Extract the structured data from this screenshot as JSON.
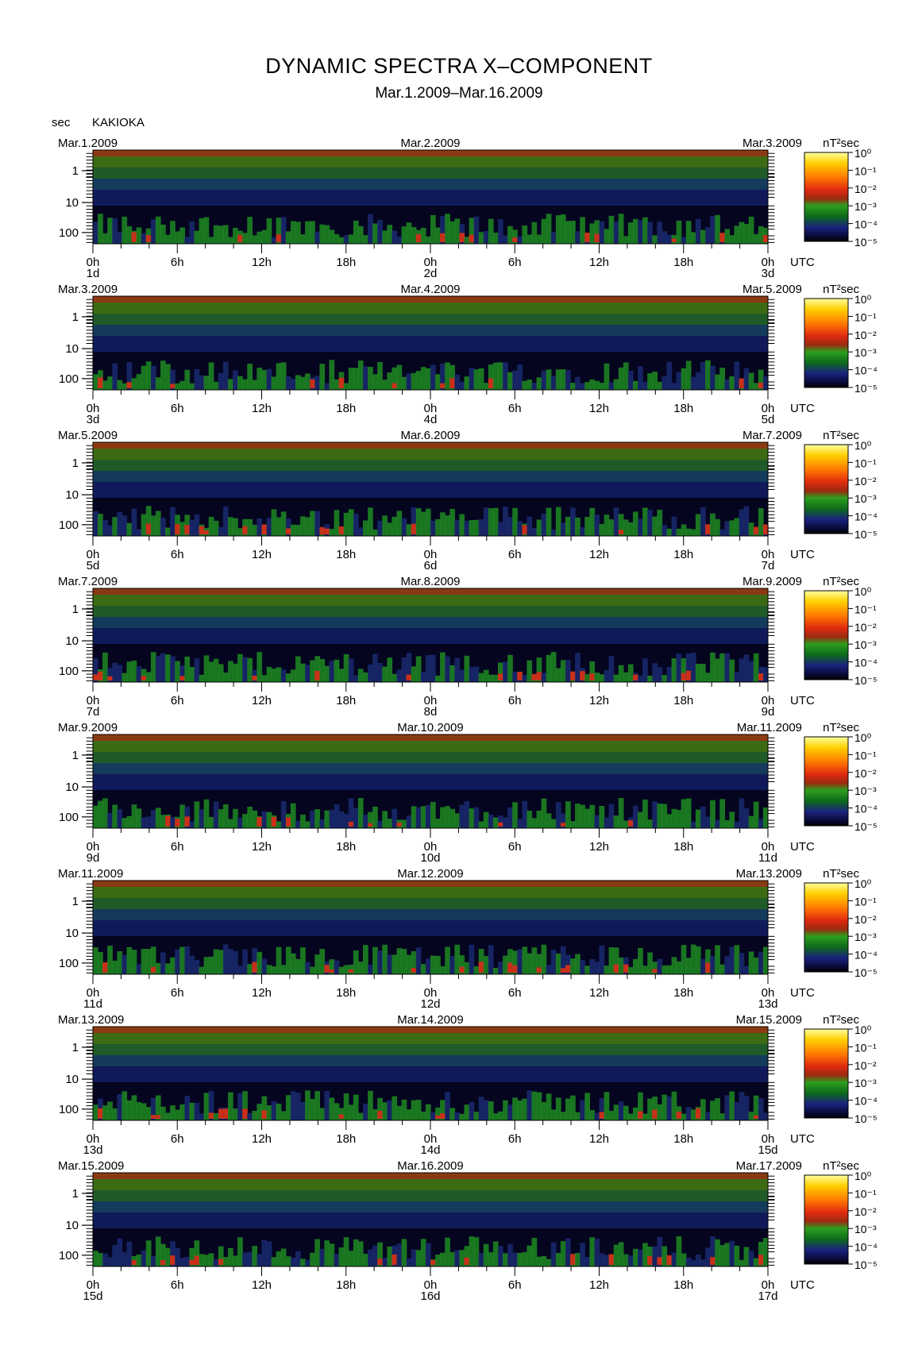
{
  "header": {
    "title": "DYNAMIC SPECTRA X–COMPONENT",
    "subtitle": "Mar.1.2009–Mar.16.2009",
    "unit_label": "sec",
    "station": "KAKIOKA"
  },
  "chart_data": {
    "type": "heatmap",
    "title": "DYNAMIC SPECTRA X–COMPONENT",
    "subtitle": "Mar.1.2009–Mar.16.2009",
    "station": "KAKIOKA",
    "ylabel": "sec",
    "y_ticks": [
      "1",
      "10",
      "100"
    ],
    "y_scale": "log",
    "x_tick_labels": [
      "0h",
      "6h",
      "12h",
      "18h",
      "0h",
      "6h",
      "12h",
      "18h",
      "0h"
    ],
    "x_unit": "UTC",
    "colorbar": {
      "unit": "nT²sec",
      "ticks": [
        "10⁰",
        "10⁻¹",
        "10⁻²",
        "10⁻³",
        "10⁻⁴",
        "10⁻⁵"
      ],
      "colors": [
        "#000000",
        "#0a0a4a",
        "#1a237e",
        "#0d6b1a",
        "#2e9e1f",
        "#b02010",
        "#e03010",
        "#ff7a00",
        "#ffd000",
        "#ffff40"
      ]
    },
    "panels": [
      {
        "dates": [
          "Mar.1.2009",
          "Mar.2.2009",
          "Mar.3.2009"
        ],
        "days": [
          "1d",
          "2d",
          "3d"
        ]
      },
      {
        "dates": [
          "Mar.3.2009",
          "Mar.4.2009",
          "Mar.5.2009"
        ],
        "days": [
          "3d",
          "4d",
          "5d"
        ]
      },
      {
        "dates": [
          "Mar.5.2009",
          "Mar.6.2009",
          "Mar.7.2009"
        ],
        "days": [
          "5d",
          "6d",
          "7d"
        ]
      },
      {
        "dates": [
          "Mar.7.2009",
          "Mar.8.2009",
          "Mar.9.2009"
        ],
        "days": [
          "7d",
          "8d",
          "9d"
        ]
      },
      {
        "dates": [
          "Mar.9.2009",
          "Mar.10.2009",
          "Mar.11.2009"
        ],
        "days": [
          "9d",
          "10d",
          "11d"
        ]
      },
      {
        "dates": [
          "Mar.11.2009",
          "Mar.12.2009",
          "Mar.13.2009"
        ],
        "days": [
          "11d",
          "12d",
          "13d"
        ]
      },
      {
        "dates": [
          "Mar.13.2009",
          "Mar.14.2009",
          "Mar.15.2009"
        ],
        "days": [
          "13d",
          "14d",
          "15d"
        ]
      },
      {
        "dates": [
          "Mar.15.2009",
          "Mar.16.2009",
          "Mar.17.2009"
        ],
        "days": [
          "15d",
          "16d",
          "17d"
        ]
      }
    ]
  }
}
